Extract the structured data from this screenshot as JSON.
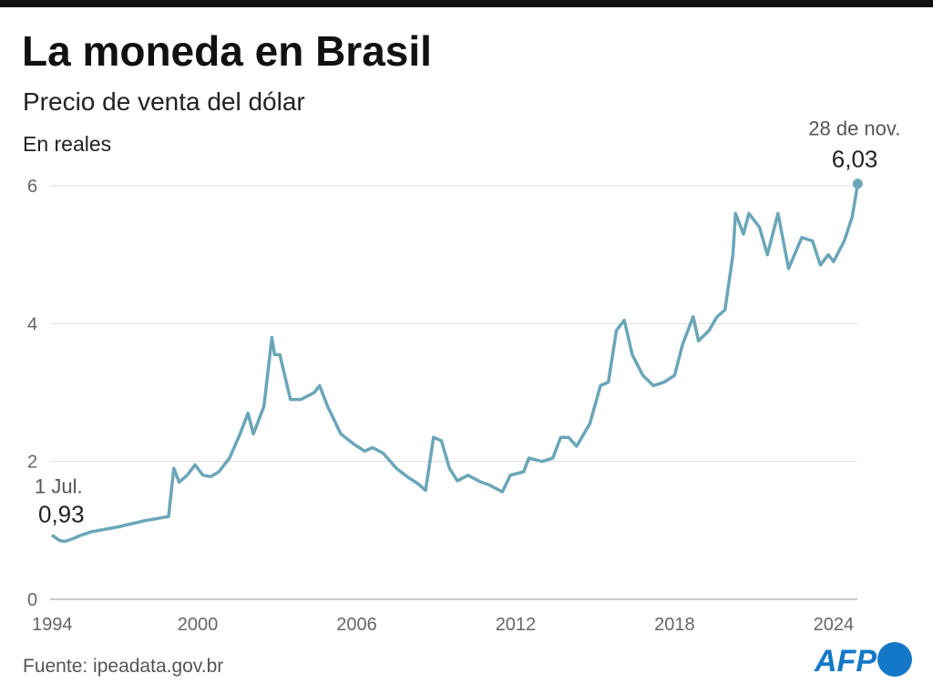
{
  "chart_data": {
    "type": "line",
    "title": "La moneda en Brasil",
    "subtitle": "Precio de venta del dólar",
    "unit_label": "En reales",
    "source": "Fuente: ipeadata.gov.br",
    "logo": "AFP",
    "x": [
      1994.5,
      1994.8,
      1995.0,
      1995.3,
      1995.6,
      1996,
      1997,
      1998,
      1998.9,
      1999.1,
      1999.3,
      1999.6,
      1999.9,
      2000.2,
      2000.5,
      2000.8,
      2001.2,
      2001.6,
      2001.9,
      2002.1,
      2002.5,
      2002.8,
      2002.9,
      2003.1,
      2003.5,
      2003.9,
      2004.4,
      2004.6,
      2004.9,
      2005.4,
      2005.9,
      2006.3,
      2006.6,
      2007.0,
      2007.5,
      2007.9,
      2008.3,
      2008.6,
      2008.9,
      2009.2,
      2009.5,
      2009.8,
      2010.2,
      2010.7,
      2011.0,
      2011.5,
      2011.8,
      2012.3,
      2012.5,
      2013.0,
      2013.4,
      2013.7,
      2014.0,
      2014.3,
      2014.8,
      2015.2,
      2015.5,
      2015.8,
      2016.1,
      2016.4,
      2016.8,
      2017.2,
      2017.6,
      2018.0,
      2018.3,
      2018.7,
      2018.9,
      2019.3,
      2019.6,
      2019.9,
      2020.2,
      2020.3,
      2020.6,
      2020.8,
      2021.2,
      2021.5,
      2021.9,
      2022.3,
      2022.8,
      2023.2,
      2023.5,
      2023.8,
      2024.0,
      2024.4,
      2024.7,
      2024.91
    ],
    "series": [
      {
        "color": "#6aa6b8",
        "values": [
          0.93,
          0.85,
          0.84,
          0.88,
          0.93,
          0.98,
          1.05,
          1.14,
          1.2,
          1.9,
          1.7,
          1.8,
          1.95,
          1.8,
          1.78,
          1.85,
          2.05,
          2.4,
          2.7,
          2.4,
          2.8,
          3.8,
          3.55,
          3.55,
          2.9,
          2.9,
          3.0,
          3.1,
          2.8,
          2.4,
          2.25,
          2.15,
          2.2,
          2.12,
          1.9,
          1.78,
          1.68,
          1.58,
          2.35,
          2.3,
          1.9,
          1.72,
          1.8,
          1.7,
          1.66,
          1.56,
          1.8,
          1.85,
          2.05,
          2.0,
          2.05,
          2.35,
          2.35,
          2.22,
          2.55,
          3.1,
          3.15,
          3.9,
          4.05,
          3.55,
          3.25,
          3.1,
          3.15,
          3.25,
          3.7,
          4.1,
          3.75,
          3.9,
          4.1,
          4.2,
          5.0,
          5.6,
          5.3,
          5.6,
          5.4,
          5.0,
          5.6,
          4.8,
          5.25,
          5.2,
          4.85,
          5.0,
          4.9,
          5.2,
          5.55,
          6.03
        ]
      }
    ],
    "annotations": [
      {
        "date": "1 Jul.",
        "label": "0,93"
      },
      {
        "date": "28 de nov.",
        "label": "6,03"
      }
    ],
    "xlim": [
      1994,
      2025
    ],
    "ylim": [
      0,
      6
    ],
    "xticks": [
      1994,
      2000,
      2006,
      2012,
      2018,
      2024
    ],
    "yticks": [
      0,
      2,
      4,
      6
    ],
    "grid": true
  }
}
